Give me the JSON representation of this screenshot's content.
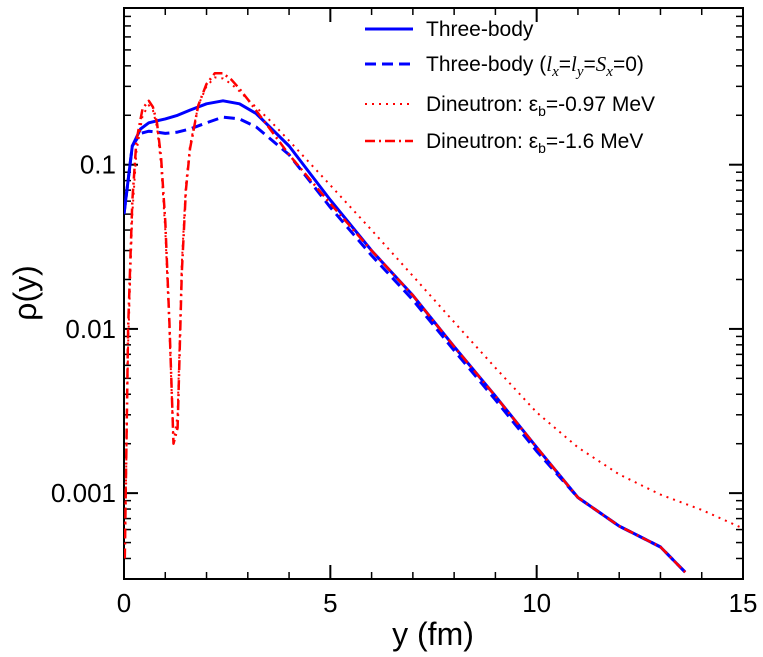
{
  "chart_data": {
    "type": "line",
    "xlabel": "y (fm)",
    "ylabel": "ρ(y)",
    "xlim": [
      0,
      15
    ],
    "ylim": [
      0.0003,
      0.9
    ],
    "yscale": "log",
    "x_ticks": [
      {
        "value": 0,
        "label": "0"
      },
      {
        "value": 5,
        "label": "5"
      },
      {
        "value": 10,
        "label": "10"
      },
      {
        "value": 15,
        "label": "15"
      }
    ],
    "y_ticks": [
      {
        "value": 0.1,
        "label": "0.1"
      },
      {
        "value": 0.01,
        "label": "0.01"
      },
      {
        "value": 0.001,
        "label": "0.001"
      }
    ],
    "grid": false,
    "legend_position": "top-right",
    "legend": [
      {
        "key": "tb",
        "text": "Three-body",
        "color": "#0000ff",
        "style": "solid"
      },
      {
        "key": "tb0",
        "text_prefix": "Three-body (",
        "l": "l",
        "x": "x",
        "eq": "=",
        "y": "y",
        "S": "S",
        "eq0": "=0)",
        "color": "#0000ff",
        "style": "dashed"
      },
      {
        "key": "d1",
        "text_prefix": "Dineutron: ",
        "eps": "ε",
        "b": "b",
        "text_suffix": "=-0.97 MeV",
        "color": "#ff0000",
        "style": "dotted"
      },
      {
        "key": "d2",
        "text_prefix": "Dineutron: ",
        "eps": "ε",
        "b": "b",
        "text_suffix": "=-1.6 MeV",
        "color": "#ff0000",
        "style": "dashdot"
      }
    ],
    "series": [
      {
        "key": "tb",
        "color": "#0000ff",
        "style": "solid",
        "x": [
          0,
          0.2,
          0.4,
          0.6,
          0.8,
          1.0,
          1.3,
          1.6,
          2.0,
          2.4,
          2.8,
          3.2,
          4.0,
          5.0,
          6.0,
          7.0,
          8.0,
          9.0,
          10.0,
          11.0,
          12.0,
          13.0,
          13.6
        ],
        "y": [
          0.05,
          0.13,
          0.165,
          0.18,
          0.185,
          0.19,
          0.2,
          0.215,
          0.235,
          0.245,
          0.235,
          0.205,
          0.13,
          0.061,
          0.03,
          0.016,
          0.0078,
          0.0039,
          0.0019,
          0.00094,
          0.00063,
          0.00047,
          0.00033
        ]
      },
      {
        "key": "tb0",
        "color": "#0000ff",
        "style": "dashed",
        "x": [
          0,
          0.2,
          0.4,
          0.6,
          0.8,
          1.0,
          1.3,
          1.6,
          2.0,
          2.4,
          2.8,
          3.2,
          4.0,
          5.0,
          6.0,
          7.0,
          8.0,
          9.0,
          10.0,
          11.0,
          12.0,
          13.0,
          13.6
        ],
        "y": [
          0.05,
          0.13,
          0.155,
          0.16,
          0.158,
          0.155,
          0.158,
          0.165,
          0.18,
          0.195,
          0.19,
          0.17,
          0.115,
          0.055,
          0.028,
          0.015,
          0.0074,
          0.0037,
          0.0018,
          0.00094,
          0.00063,
          0.00047,
          0.00033
        ]
      },
      {
        "key": "d1",
        "color": "#ff0000",
        "style": "dotted",
        "x": [
          0.02,
          0.1,
          0.2,
          0.3,
          0.45,
          0.6,
          0.7,
          0.8,
          0.9,
          1.0,
          1.1,
          1.2,
          1.3,
          1.4,
          1.5,
          1.6,
          1.8,
          2.0,
          2.2,
          2.4,
          2.6,
          2.8,
          3.0,
          3.5,
          4.0,
          5.0,
          6.0,
          7.0,
          8.0,
          9.0,
          10.0,
          11.0,
          12.0,
          13.0,
          14.0,
          15.0
        ],
        "y": [
          0.0004,
          0.008,
          0.05,
          0.12,
          0.2,
          0.23,
          0.215,
          0.17,
          0.1,
          0.04,
          0.01,
          0.002,
          0.003,
          0.025,
          0.075,
          0.13,
          0.23,
          0.3,
          0.34,
          0.335,
          0.31,
          0.28,
          0.25,
          0.19,
          0.14,
          0.075,
          0.04,
          0.021,
          0.011,
          0.0058,
          0.0031,
          0.0019,
          0.0013,
          0.00098,
          0.00079,
          0.00061
        ]
      },
      {
        "key": "d2",
        "color": "#ff0000",
        "style": "dashdot",
        "x": [
          0.02,
          0.1,
          0.2,
          0.3,
          0.45,
          0.6,
          0.7,
          0.8,
          0.9,
          1.0,
          1.1,
          1.2,
          1.3,
          1.4,
          1.5,
          1.6,
          1.8,
          2.0,
          2.2,
          2.4,
          2.6,
          2.8,
          3.0,
          3.5,
          4.0,
          5.0,
          6.0,
          7.0,
          8.0,
          9.0,
          10.0,
          11.0,
          12.0,
          13.0,
          13.6
        ],
        "y": [
          0.0004,
          0.01,
          0.06,
          0.14,
          0.22,
          0.245,
          0.225,
          0.18,
          0.11,
          0.045,
          0.011,
          0.002,
          0.0025,
          0.022,
          0.07,
          0.125,
          0.23,
          0.31,
          0.36,
          0.36,
          0.33,
          0.29,
          0.25,
          0.17,
          0.115,
          0.058,
          0.03,
          0.016,
          0.0078,
          0.0039,
          0.0019,
          0.00094,
          0.00063,
          0.00047,
          0.00033
        ]
      }
    ]
  }
}
